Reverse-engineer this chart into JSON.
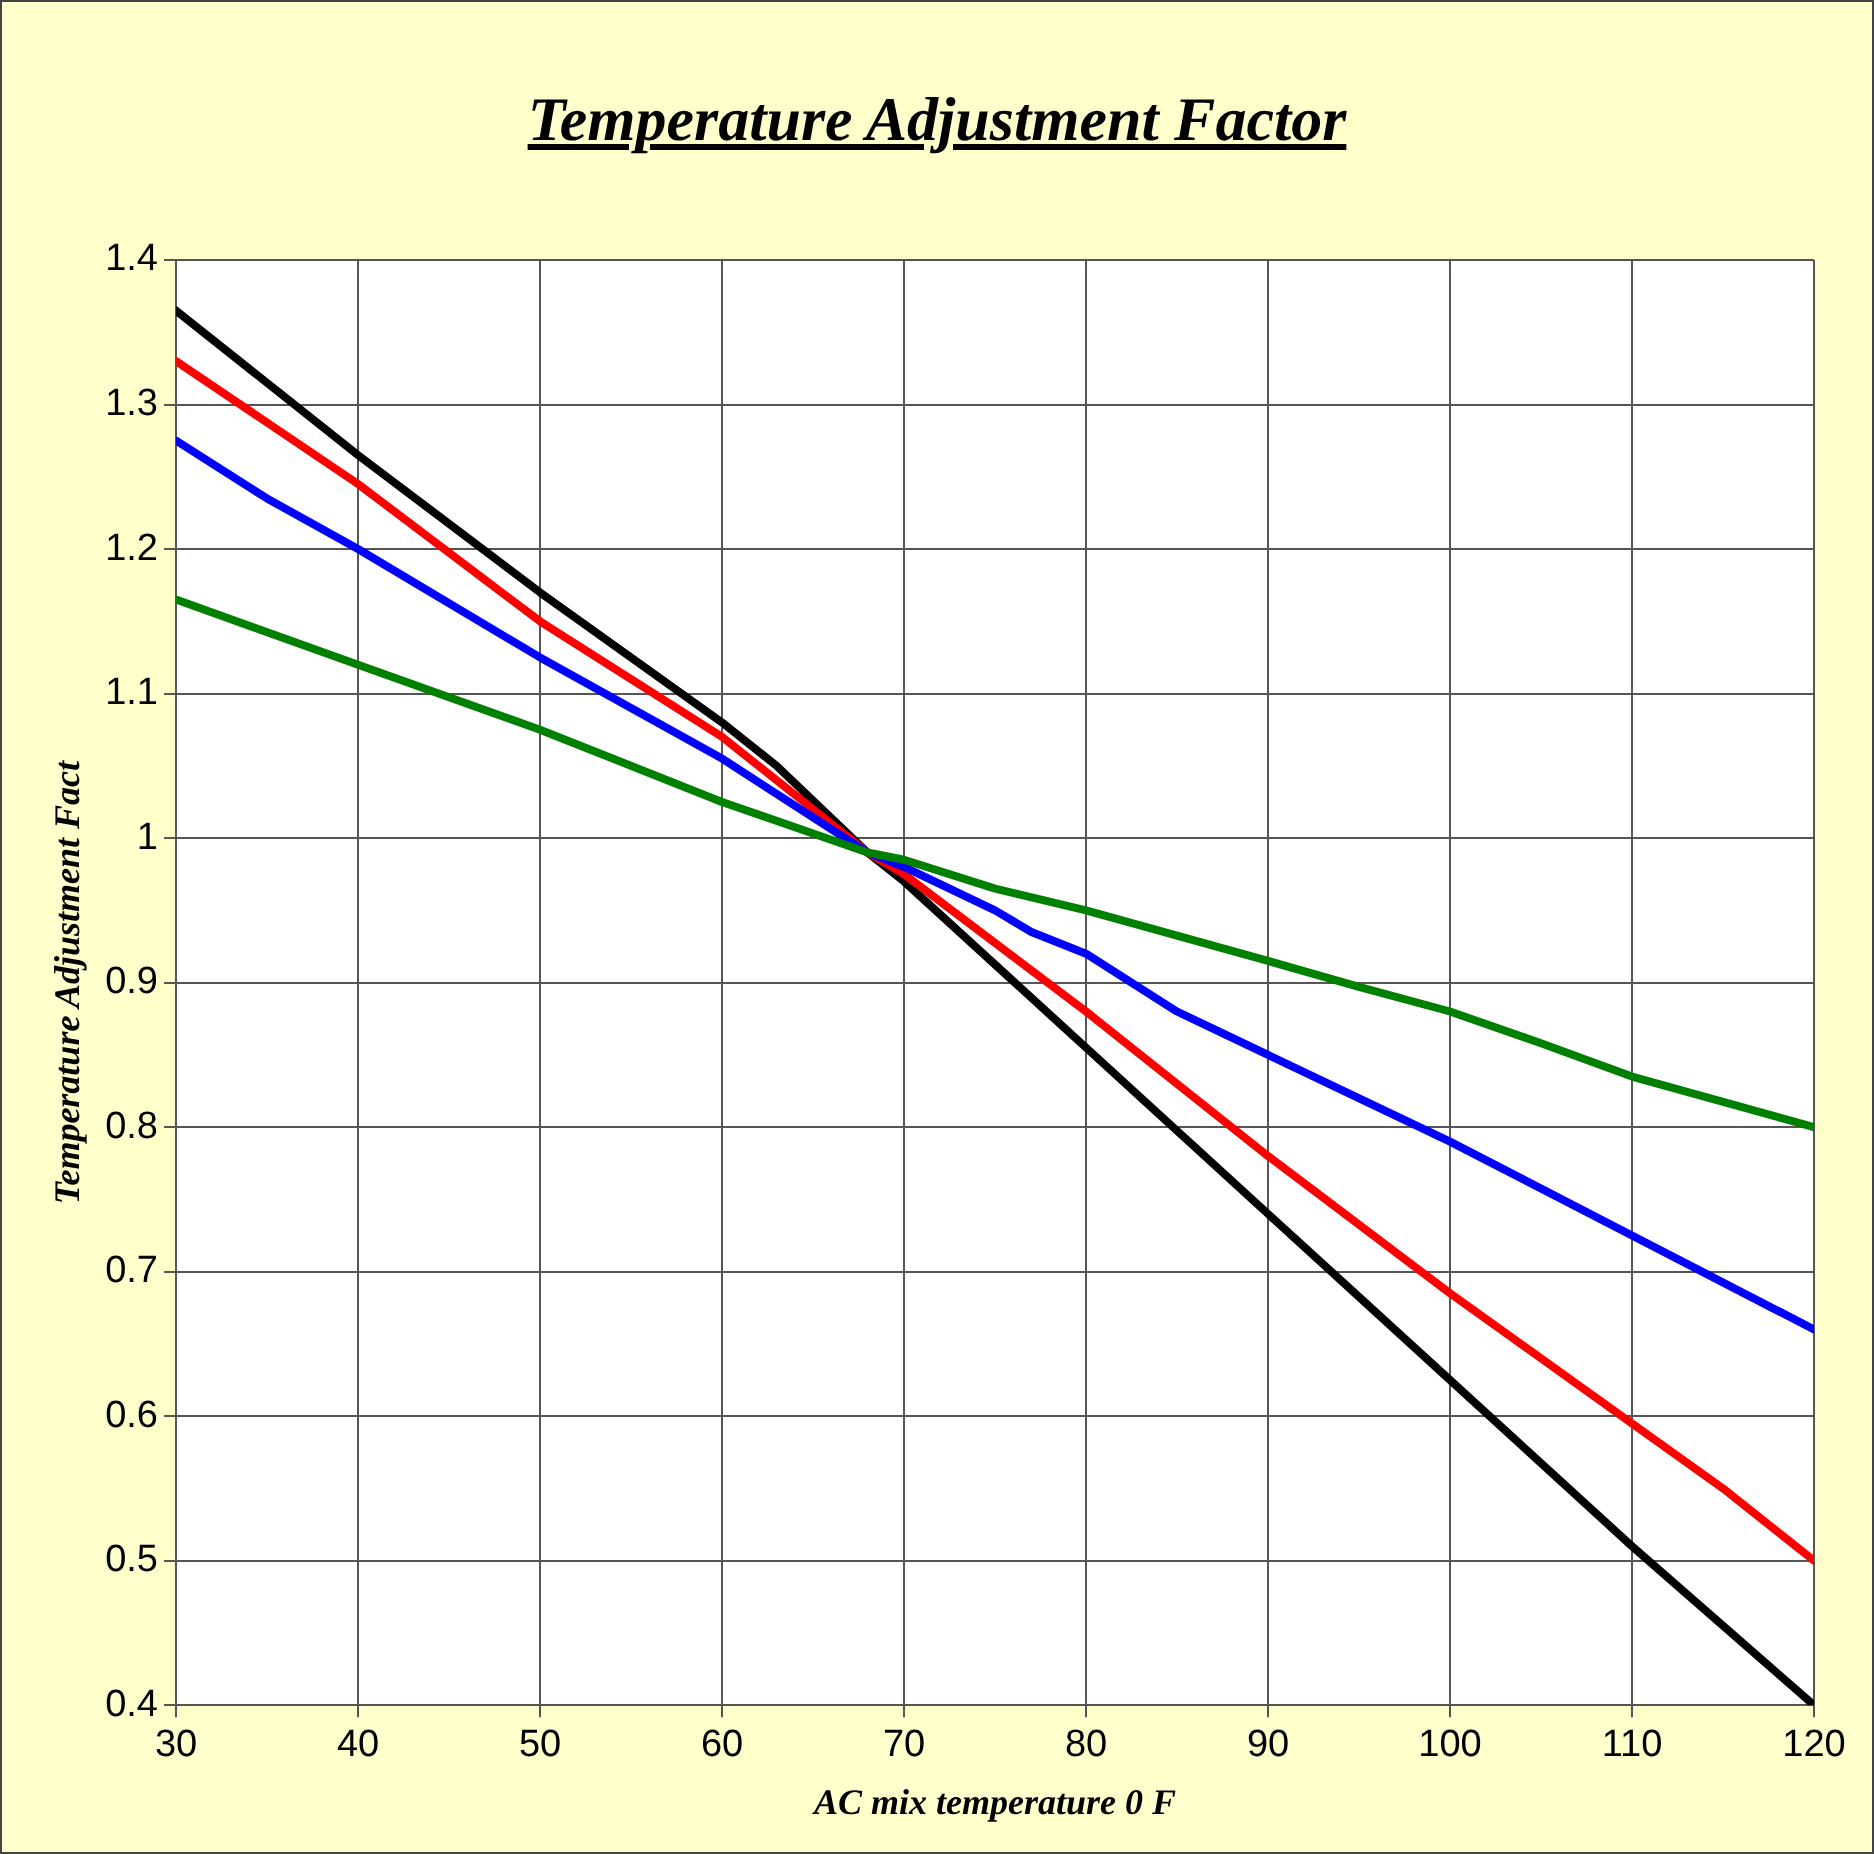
{
  "chart_data": {
    "type": "line",
    "title": "Temperature Adjustment Factor",
    "xlabel": "AC mix temperature 0 F",
    "ylabel": "Temperature Adjustment Fact",
    "xlim": [
      30,
      120
    ],
    "xticks": [
      30,
      40,
      50,
      60,
      70,
      80,
      90,
      100,
      110,
      120
    ],
    "ylim": [
      0.4,
      1.4
    ],
    "yticks": [
      0.4,
      0.5,
      0.6,
      0.7,
      0.8,
      0.9,
      1,
      1.1,
      1.2,
      1.3,
      1.4
    ],
    "grid": true,
    "legend": false,
    "marker": "none",
    "line_style": "solid",
    "series": [
      {
        "color": "#008000",
        "x": [
          30,
          40,
          50,
          60,
          68,
          70,
          75,
          80,
          90,
          95,
          100,
          105,
          110,
          120
        ],
        "values": [
          1.165,
          1.12,
          1.075,
          1.025,
          0.99,
          0.985,
          0.965,
          0.95,
          0.915,
          0.897,
          0.88,
          0.858,
          0.835,
          0.8
        ]
      },
      {
        "color": "#0000ff",
        "x": [
          30,
          35,
          40,
          50,
          60,
          68,
          70,
          75,
          77,
          80,
          85,
          90,
          100,
          110,
          120
        ],
        "values": [
          1.275,
          1.235,
          1.2,
          1.125,
          1.055,
          0.99,
          0.98,
          0.95,
          0.935,
          0.92,
          0.88,
          0.85,
          0.79,
          0.725,
          0.66
        ]
      },
      {
        "color": "#ff0000",
        "x": [
          30,
          40,
          50,
          55,
          60,
          68,
          70,
          80,
          90,
          100,
          110,
          115,
          120
        ],
        "values": [
          1.33,
          1.245,
          1.15,
          1.11,
          1.07,
          0.99,
          0.975,
          0.88,
          0.78,
          0.685,
          0.595,
          0.55,
          0.5
        ]
      },
      {
        "color": "#000000",
        "x": [
          30,
          40,
          50,
          55,
          60,
          63,
          68,
          70,
          80,
          90,
          100,
          110,
          120
        ],
        "values": [
          1.365,
          1.265,
          1.17,
          1.125,
          1.08,
          1.05,
          0.99,
          0.97,
          0.855,
          0.74,
          0.625,
          0.51,
          0.4
        ]
      }
    ]
  }
}
